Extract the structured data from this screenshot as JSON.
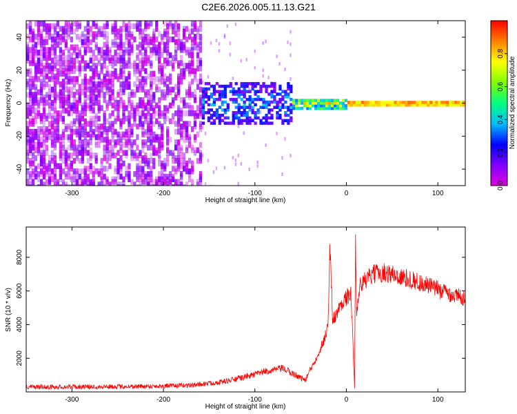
{
  "title": "C2E6.2026.005.11.13.G21",
  "chart_data": [
    {
      "type": "heatmap",
      "xlabel": "Height of straight line (km)",
      "ylabel": "Frequency (Hz)",
      "xlim": [
        -350,
        130
      ],
      "ylim": [
        -50,
        50
      ],
      "x_ticks": [
        -300,
        -200,
        -100,
        0,
        100
      ],
      "x_tick_labels": [
        "-300",
        "-200",
        "-100",
        "0",
        "100"
      ],
      "y_ticks": [
        -40,
        -20,
        0,
        20,
        40
      ],
      "y_tick_labels": [
        "-40",
        "-20",
        "0",
        "20",
        "40"
      ],
      "colorbar": {
        "label": "Normalized spectral amplitude",
        "range": [
          0.0,
          1.0
        ],
        "ticks": [
          0.0,
          0.2,
          0.4,
          0.6,
          0.8
        ],
        "tick_labels": [
          "0.0",
          "0.2",
          "0.4",
          "0.6",
          "0.8"
        ],
        "colormap": [
          "#e000e0",
          "#8000ff",
          "#0000ff",
          "#00c0ff",
          "#00ff80",
          "#80ff00",
          "#ffff00",
          "#ff8000",
          "#ff0000"
        ]
      },
      "regions": [
        {
          "x_range": [
            -350,
            -160
          ],
          "freq_spread": 50,
          "amplitude": [
            0.0,
            0.15
          ]
        },
        {
          "x_range": [
            -160,
            -60
          ],
          "freq_spread": 12,
          "amplitude": [
            0.1,
            0.45
          ]
        },
        {
          "x_range": [
            -60,
            0
          ],
          "freq_spread": 3,
          "amplitude": [
            0.3,
            0.9
          ]
        },
        {
          "x_range": [
            0,
            130
          ],
          "freq_spread": 1,
          "amplitude": [
            0.7,
            1.0
          ]
        }
      ],
      "grid": false
    },
    {
      "type": "line",
      "xlabel": "Height of straight line (km)",
      "ylabel": "SNR (10 * v/v)",
      "xlim": [
        -350,
        130
      ],
      "ylim": [
        0,
        9800
      ],
      "x_ticks": [
        -300,
        -200,
        -100,
        0,
        100
      ],
      "x_tick_labels": [
        "-300",
        "-200",
        "-100",
        "0",
        "100"
      ],
      "y_ticks": [
        2000,
        4000,
        6000,
        8000
      ],
      "y_tick_labels": [
        "2000",
        "4000",
        "6000",
        "8000"
      ],
      "color": "#ff0000",
      "series": [
        {
          "x": [
            -350,
            -300,
            -250,
            -200,
            -170,
            -150,
            -130,
            -110,
            -90,
            -70,
            -55,
            -45,
            -35,
            -25,
            -20,
            -18,
            -15,
            -10,
            -5,
            0,
            5,
            9,
            10,
            11,
            15,
            20,
            30,
            40,
            50,
            60,
            70,
            80,
            90,
            100,
            110,
            120,
            130
          ],
          "values": [
            300,
            300,
            320,
            350,
            400,
            500,
            650,
            900,
            1200,
            1400,
            1000,
            700,
            1800,
            3000,
            4000,
            8600,
            4300,
            4700,
            5300,
            5600,
            5800,
            300,
            9800,
            4800,
            6300,
            6600,
            7000,
            7100,
            7000,
            6800,
            6700,
            6500,
            6300,
            6100,
            5900,
            5700,
            5600
          ],
          "noise": 400
        }
      ],
      "grid": false
    }
  ]
}
